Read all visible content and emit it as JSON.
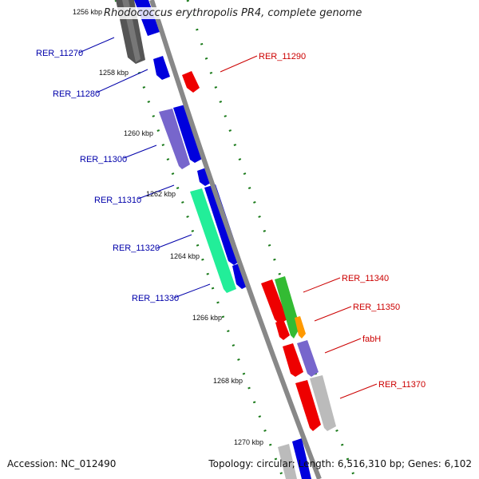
{
  "title": "Rhodococcus erythropolis PR4, complete genome",
  "footer": {
    "accession": "Accession: NC_012490",
    "summary": "Topology: circular; Length: 6,516,310 bp; Genes: 6,102"
  },
  "ticks": [
    "1256 kbp",
    "1258 kbp",
    "1260 kbp",
    "1262 kbp",
    "1264 kbp",
    "1266 kbp",
    "1268 kbp",
    "1270 kbp"
  ],
  "genes": [
    {
      "name": "RER_11270",
      "color": "#0000aa"
    },
    {
      "name": "RER_11280",
      "color": "#0000aa"
    },
    {
      "name": "RER_11290",
      "color": "#cc0000"
    },
    {
      "name": "RER_11300",
      "color": "#0000aa"
    },
    {
      "name": "RER_11310",
      "color": "#0000aa"
    },
    {
      "name": "RER_11320",
      "color": "#0000aa"
    },
    {
      "name": "RER_11330",
      "color": "#0000aa"
    },
    {
      "name": "RER_11340",
      "color": "#cc0000"
    },
    {
      "name": "RER_11350",
      "color": "#cc0000"
    },
    {
      "name": "fabH",
      "color": "#cc0000"
    },
    {
      "name": "RER_11370",
      "color": "#cc0000"
    }
  ],
  "colors": {
    "backbone": "#888888",
    "tick_marks": "#1a7a1a",
    "reverse_label": "#0000aa",
    "forward_label": "#cc0000"
  }
}
